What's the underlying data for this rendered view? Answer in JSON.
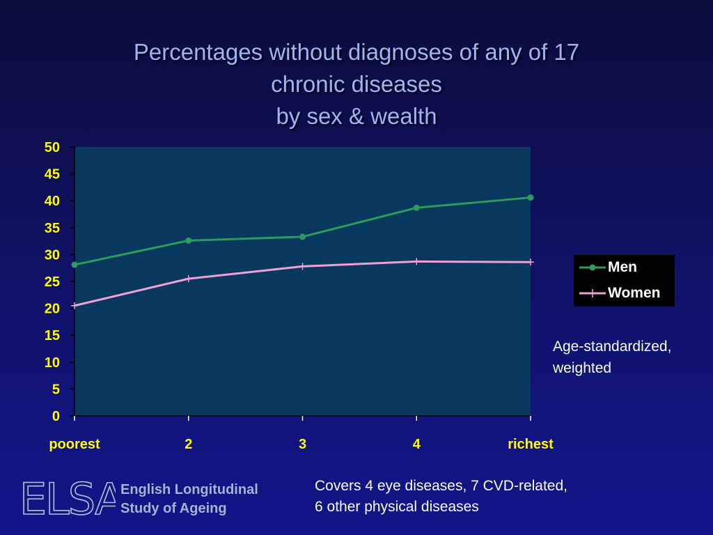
{
  "title": {
    "line1": "Percentages without diagnoses of any of 17",
    "line2": "chronic diseases",
    "line3": "by sex & wealth"
  },
  "chart_data": {
    "type": "line",
    "categories": [
      "poorest",
      "2",
      "3",
      "4",
      "richest"
    ],
    "series": [
      {
        "name": "Men",
        "values": [
          28.1,
          32.6,
          33.3,
          38.7,
          40.6
        ],
        "color": "#2e9a5e",
        "marker": "circle"
      },
      {
        "name": "Women",
        "values": [
          20.5,
          25.5,
          27.8,
          28.7,
          28.6
        ],
        "color": "#f0a0d8",
        "marker": "plus"
      }
    ],
    "ylim": [
      0,
      50
    ],
    "yticks": [
      "0",
      "5",
      "10",
      "15",
      "20",
      "25",
      "30",
      "35",
      "40",
      "45",
      "50"
    ],
    "grid": false,
    "legend": "right",
    "plot_bg": "#08385e",
    "tick_color": "#ffff00"
  },
  "note": "Age-standardized, weighted",
  "footer_note": {
    "line1": "Covers 4 eye diseases, 7 CVD-related,",
    "line2": "6 other physical diseases"
  },
  "logo": {
    "mark": "ELSA",
    "line1": "English Longitudinal",
    "line2": "Study of Ageing"
  }
}
